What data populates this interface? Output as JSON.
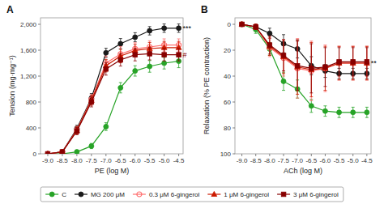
{
  "chart_data": [
    {
      "type": "line",
      "title": "A",
      "x_label": "PE (log M)",
      "y_label": "Tension (mg·mg⁻¹)",
      "x": [
        -9.0,
        -8.5,
        -8.0,
        -7.5,
        -7.0,
        -6.5,
        -6.0,
        -5.5,
        -5.0,
        -4.5
      ],
      "series": [
        {
          "name": "C",
          "color": "#27a327",
          "marker": "circle",
          "values": [
            0,
            0,
            30,
            120,
            420,
            1020,
            1280,
            1350,
            1400,
            1430
          ],
          "errors": [
            0,
            0,
            20,
            40,
            60,
            80,
            80,
            90,
            90,
            100
          ]
        },
        {
          "name": "MG 200 μM",
          "color": "#1a1a1a",
          "marker": "circle",
          "values": [
            0,
            30,
            390,
            860,
            1560,
            1700,
            1800,
            1900,
            1940,
            1940
          ],
          "errors": [
            0,
            20,
            50,
            70,
            70,
            80,
            70,
            65,
            65,
            65
          ]
        },
        {
          "name": "0.3 μM 6-gingerol",
          "color": "#ff7070",
          "marker": "open-circle",
          "values": [
            0,
            30,
            370,
            840,
            1400,
            1540,
            1620,
            1650,
            1680,
            1680
          ],
          "errors": [
            0,
            20,
            55,
            75,
            110,
            115,
            95,
            95,
            95,
            95
          ]
        },
        {
          "name": "1 μM 6-gingerol",
          "color": "#cc1a00",
          "marker": "triangle",
          "values": [
            0,
            30,
            360,
            825,
            1360,
            1510,
            1595,
            1625,
            1640,
            1640
          ],
          "errors": [
            0,
            20,
            55,
            75,
            95,
            105,
            95,
            95,
            95,
            95
          ]
        },
        {
          "name": "3 μM 6-gingerol",
          "color": "#880000",
          "marker": "square",
          "values": [
            0,
            30,
            350,
            800,
            1310,
            1450,
            1530,
            1545,
            1530,
            1530
          ],
          "errors": [
            0,
            20,
            55,
            75,
            95,
            95,
            95,
            95,
            95,
            95
          ]
        }
      ],
      "xlim": [
        -9.25,
        -4.35
      ],
      "xticks": [
        {
          "value": -9.0,
          "label": "-9.0"
        },
        -8.5,
        {
          "value": -8.0,
          "label": "-8.0"
        },
        -7.5,
        {
          "value": -7.0,
          "label": "-7.0"
        },
        -6.5,
        {
          "value": -6.0,
          "label": "-6.0"
        },
        -5.5,
        {
          "value": -5.0,
          "label": "-5.0"
        },
        -4.5
      ],
      "ylim": [
        0,
        2100
      ],
      "yticks": [
        0,
        400,
        800,
        {
          "value": 1200,
          "label": "1,200"
        },
        {
          "value": 1600,
          "label": "1,600"
        },
        {
          "value": 2000,
          "label": "2,000"
        }
      ],
      "annotations": [
        {
          "text": "***",
          "x": -4.5,
          "y": 1940,
          "color": "#000000"
        },
        {
          "text": "#",
          "x": -4.5,
          "y": 1530,
          "color": "#880000"
        }
      ],
      "legend": "bottom"
    },
    {
      "type": "line",
      "title": "B",
      "x_label": "ACh (log M)",
      "y_label": "Relaxation (% PE contraction)",
      "x": [
        -9.0,
        -8.5,
        -8.0,
        -7.5,
        -7.0,
        -6.5,
        -6.0,
        -5.5,
        -5.0,
        -4.5
      ],
      "series": [
        {
          "name": "C",
          "color": "#27a327",
          "marker": "circle",
          "values": [
            0,
            4,
            19,
            44,
            50,
            63,
            67,
            68,
            68,
            68
          ],
          "errors": [
            0,
            3,
            5,
            7,
            7,
            5,
            4,
            4,
            4,
            4
          ]
        },
        {
          "name": "MG 200 μM",
          "color": "#1a1a1a",
          "marker": "circle",
          "values": [
            0,
            2,
            7,
            15,
            19,
            32,
            36,
            38,
            38,
            38
          ],
          "errors": [
            0,
            2,
            4,
            7,
            7,
            7,
            5,
            4,
            4,
            4
          ]
        },
        {
          "name": "0.3 μM 6-gingerol",
          "color": "#ff7070",
          "marker": "open-circle",
          "values": [
            0,
            2,
            18,
            26,
            34,
            36,
            34,
            30,
            30,
            30
          ],
          "errors": [
            0,
            2,
            7,
            14,
            23,
            23,
            18,
            13,
            13,
            13
          ]
        },
        {
          "name": "1 μM 6-gingerol",
          "color": "#cc1a00",
          "marker": "triangle",
          "values": [
            0,
            2,
            17,
            25,
            33,
            35,
            34,
            30,
            30,
            30
          ],
          "errors": [
            0,
            2,
            7,
            13,
            21,
            21,
            17,
            13,
            13,
            13
          ]
        },
        {
          "name": "3 μM 6-gingerol",
          "color": "#880000",
          "marker": "square",
          "values": [
            0,
            2,
            16,
            24,
            32,
            34,
            33,
            29,
            29,
            29
          ],
          "errors": [
            0,
            2,
            7,
            12,
            19,
            19,
            15,
            11,
            11,
            11
          ]
        }
      ],
      "xlim": [
        -9.25,
        -4.35
      ],
      "xticks": [
        {
          "value": -9.0,
          "label": "-9.0"
        },
        -8.5,
        {
          "value": -8.0,
          "label": "-8.0"
        },
        -7.5,
        {
          "value": -7.0,
          "label": "-7.0"
        },
        -6.5,
        {
          "value": -6.0,
          "label": "-6.0"
        },
        -5.5,
        {
          "value": -5.0,
          "label": "-5.0"
        },
        -4.5
      ],
      "ylim": [
        100,
        -5
      ],
      "yticks": [
        0,
        20,
        40,
        60,
        80,
        100
      ],
      "annotations": [
        {
          "text": "**",
          "x": -4.5,
          "y": 30,
          "color": "#000000"
        }
      ]
    }
  ]
}
